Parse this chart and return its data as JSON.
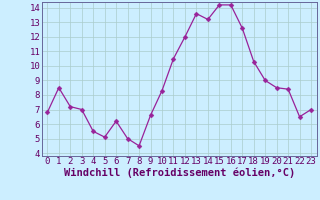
{
  "x": [
    0,
    1,
    2,
    3,
    4,
    5,
    6,
    7,
    8,
    9,
    10,
    11,
    12,
    13,
    14,
    15,
    16,
    17,
    18,
    19,
    20,
    21,
    22,
    23
  ],
  "y": [
    6.8,
    8.5,
    7.2,
    7.0,
    5.5,
    5.1,
    6.2,
    5.0,
    4.5,
    6.6,
    8.3,
    10.5,
    12.0,
    13.6,
    13.2,
    14.2,
    14.2,
    12.6,
    10.3,
    9.0,
    8.5,
    8.4,
    6.5,
    7.0
  ],
  "line_color": "#992299",
  "marker_color": "#992299",
  "bg_color": "#cceeff",
  "grid_color": "#aacccc",
  "xlabel": "Windchill (Refroidissement éolien,°C)",
  "xlim_min": -0.5,
  "xlim_max": 23.5,
  "ylim_min": 3.8,
  "ylim_max": 14.4,
  "yticks": [
    4,
    5,
    6,
    7,
    8,
    9,
    10,
    11,
    12,
    13,
    14
  ],
  "xticks": [
    0,
    1,
    2,
    3,
    4,
    5,
    6,
    7,
    8,
    9,
    10,
    11,
    12,
    13,
    14,
    15,
    16,
    17,
    18,
    19,
    20,
    21,
    22,
    23
  ],
  "xlabel_fontsize": 7.5,
  "tick_fontsize": 6.5,
  "marker_size": 2.5,
  "line_width": 0.9
}
